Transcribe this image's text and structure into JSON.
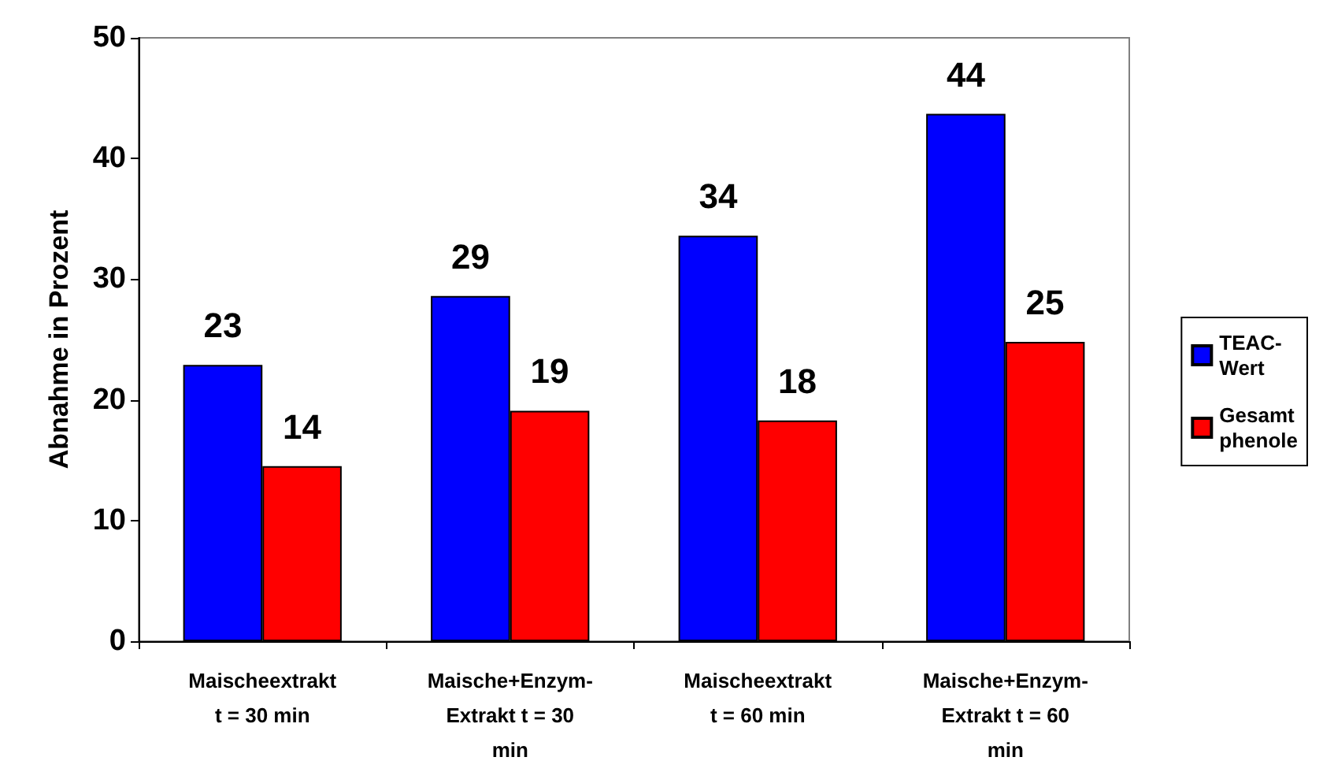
{
  "chart_data": {
    "type": "bar",
    "ylabel": "Abnahme in Prozent",
    "categories": [
      "Maischeextrakt\nt = 30 min",
      "Maische+Enzym-\nExtrakt t = 30\nmin",
      "Maischeextrakt\nt = 60 min",
      "Maische+Enzym-\nExtrakt t = 60\nmin"
    ],
    "series": [
      {
        "name": "TEAC-\nWert",
        "color": "#0000ff",
        "values": [
          22.9,
          28.6,
          33.6,
          43.7
        ],
        "value_labels": [
          "23",
          "29",
          "34",
          "44"
        ]
      },
      {
        "name": "Gesamt\nphenole",
        "color": "#ff0000",
        "values": [
          14.5,
          19.1,
          18.3,
          24.8
        ],
        "value_labels": [
          "14",
          "19",
          "18",
          "25"
        ]
      }
    ],
    "ylim": [
      0,
      50
    ],
    "yticks": [
      0,
      10,
      20,
      30,
      40,
      50
    ],
    "grid": false,
    "legend": "right"
  }
}
